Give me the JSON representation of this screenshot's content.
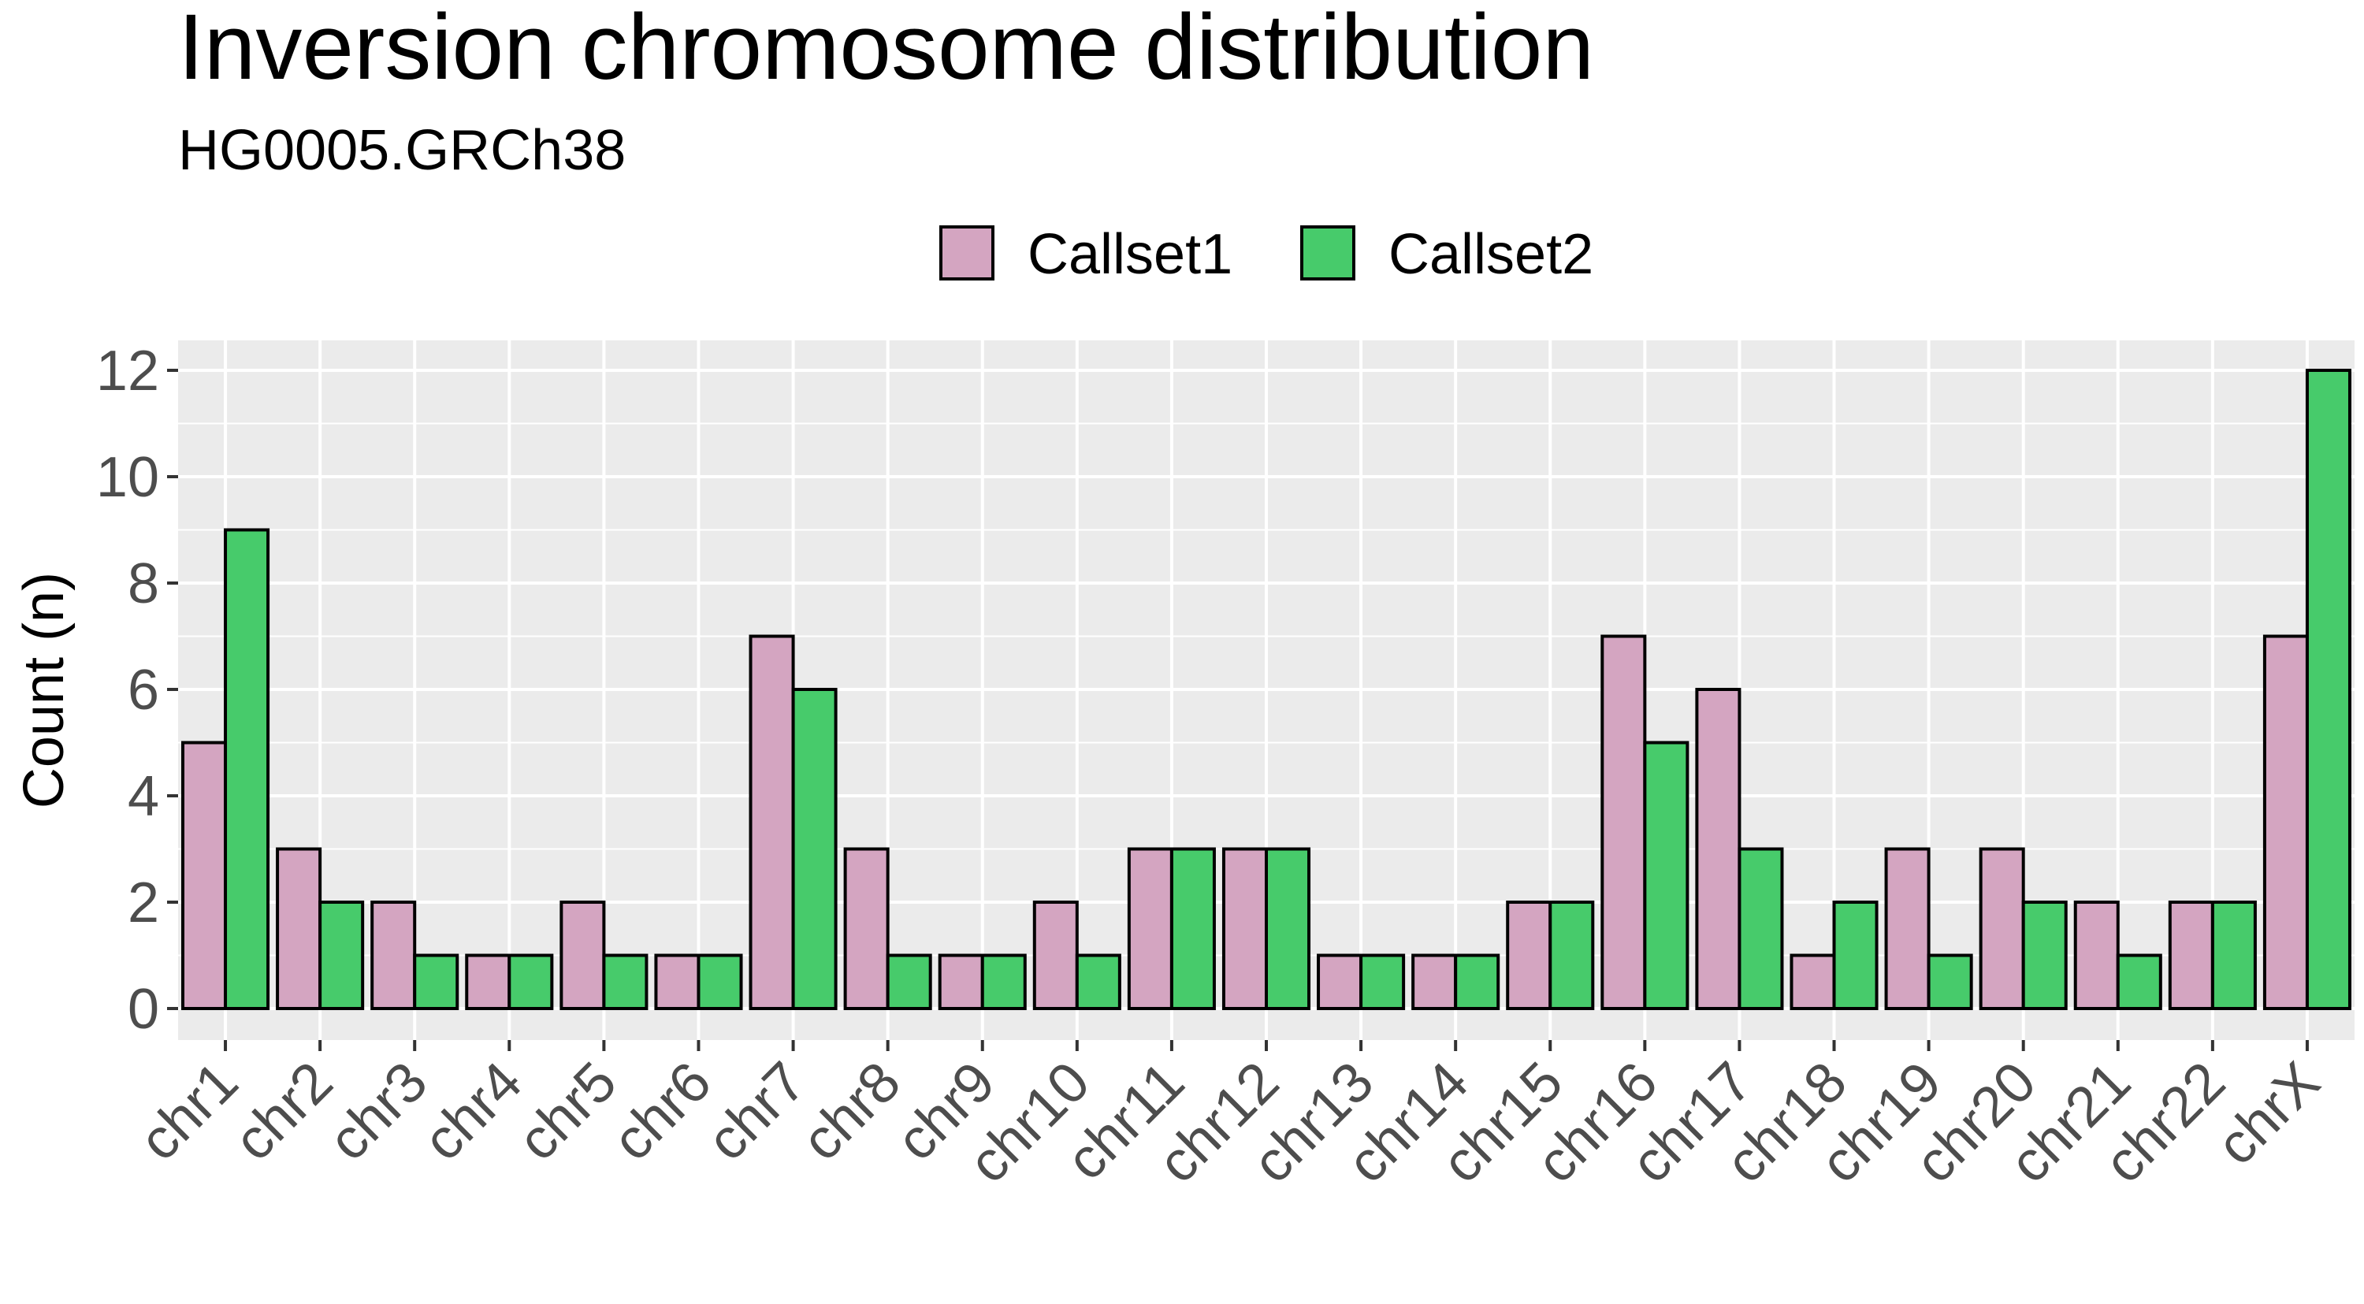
{
  "chart_data": {
    "type": "bar",
    "title": "Inversion chromosome distribution",
    "subtitle": "HG0005.GRCh38",
    "xlabel": "",
    "ylabel": "Count (n)",
    "ylim": [
      0,
      12.6
    ],
    "yticks": [
      0,
      2,
      4,
      6,
      8,
      10,
      12
    ],
    "grid": true,
    "legend_position": "top",
    "categories": [
      "chr1",
      "chr2",
      "chr3",
      "chr4",
      "chr5",
      "chr6",
      "chr7",
      "chr8",
      "chr9",
      "chr10",
      "chr11",
      "chr12",
      "chr13",
      "chr14",
      "chr15",
      "chr16",
      "chr17",
      "chr18",
      "chr19",
      "chr20",
      "chr21",
      "chr22",
      "chrX"
    ],
    "series": [
      {
        "name": "Callset1",
        "color": "#D4A5C1",
        "values": [
          5,
          3,
          2,
          1,
          2,
          1,
          7,
          3,
          1,
          2,
          3,
          3,
          1,
          1,
          2,
          7,
          6,
          1,
          3,
          3,
          2,
          2,
          7
        ]
      },
      {
        "name": "Callset2",
        "color": "#47CB6B",
        "values": [
          9,
          2,
          1,
          1,
          1,
          1,
          6,
          1,
          1,
          1,
          3,
          3,
          1,
          1,
          2,
          5,
          3,
          2,
          1,
          2,
          1,
          2,
          12
        ]
      }
    ]
  }
}
